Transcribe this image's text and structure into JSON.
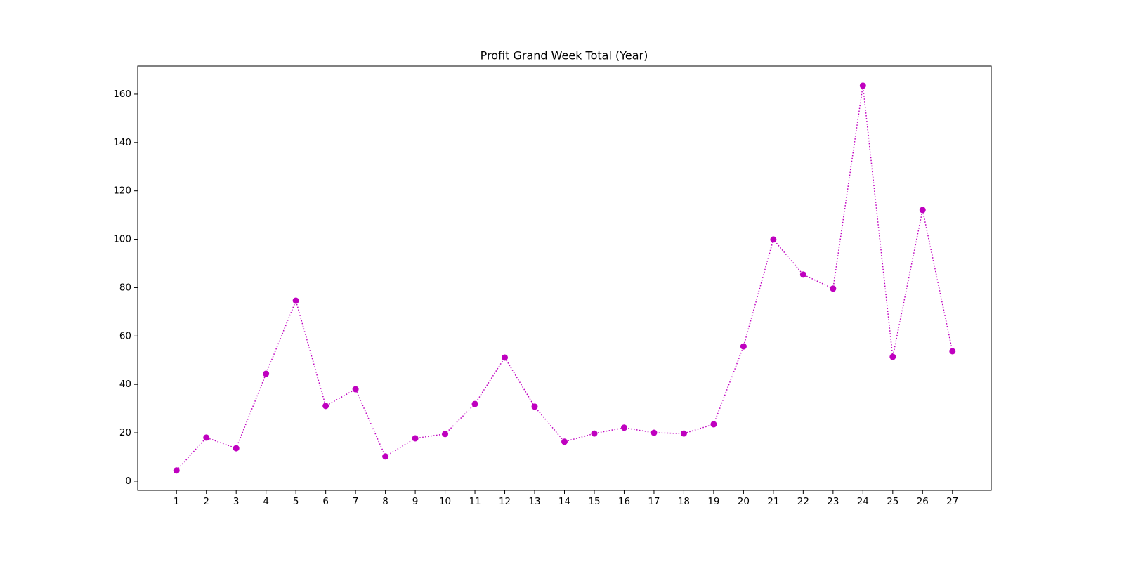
{
  "chart_data": {
    "type": "line",
    "title": "Profit Grand Week Total (Year)",
    "x": [
      1,
      2,
      3,
      4,
      5,
      6,
      7,
      8,
      9,
      10,
      11,
      12,
      13,
      14,
      15,
      16,
      17,
      18,
      19,
      20,
      21,
      22,
      23,
      24,
      25,
      26,
      27
    ],
    "series": [
      {
        "name": "Profit",
        "color": "#bf00bf",
        "values": [
          4.4,
          18.0,
          13.6,
          44.4,
          74.6,
          31.1,
          38.0,
          10.2,
          17.7,
          19.5,
          31.9,
          51.1,
          30.8,
          16.3,
          19.7,
          22.1,
          20.0,
          19.7,
          23.5,
          55.7,
          99.9,
          85.4,
          79.6,
          163.5,
          51.4,
          112.1,
          53.7
        ]
      }
    ],
    "xlim": [
      -0.3,
      28.3
    ],
    "xticks": [
      1,
      2,
      3,
      4,
      5,
      6,
      7,
      8,
      9,
      10,
      11,
      12,
      13,
      14,
      15,
      16,
      17,
      18,
      19,
      20,
      21,
      22,
      23,
      24,
      25,
      26,
      27
    ],
    "ylim": [
      -3.8,
      171.6
    ],
    "yticks": [
      0,
      20,
      40,
      60,
      80,
      100,
      120,
      140,
      160
    ],
    "grid": false,
    "line_style": "dotted"
  }
}
